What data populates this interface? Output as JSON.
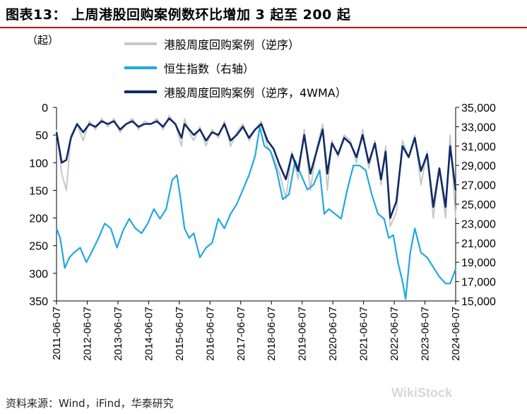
{
  "page": {
    "title": "图表13：  上周港股回购案例数环比增加 3 起至 200 起",
    "unit_label": "（起）",
    "source": "资料来源：Wind，iFind，华泰研究",
    "watermark": "WikiStock"
  },
  "chart_data": {
    "type": "line",
    "title": "上周港股回购案例数环比增加 3 起至 200 起",
    "xlabel": "",
    "ylabel_left": "（起）",
    "ylabel_right": "",
    "grid": false,
    "legend_position": "top",
    "left_axis": {
      "min": 0,
      "max": 350,
      "inverted": true,
      "ticks": [
        0,
        50,
        100,
        150,
        200,
        250,
        300,
        350
      ]
    },
    "right_axis": {
      "min": 15000,
      "max": 35000,
      "ticks": [
        "15,000",
        "17,000",
        "19,000",
        "21,000",
        "23,000",
        "25,000",
        "27,000",
        "29,000",
        "31,000",
        "33,000",
        "35,000"
      ],
      "tick_values": [
        15000,
        17000,
        19000,
        21000,
        23000,
        25000,
        27000,
        29000,
        31000,
        33000,
        35000
      ]
    },
    "x_range": [
      2011.43,
      2024.43
    ],
    "x_tick_labels": [
      "2011-06-07",
      "2012-06-07",
      "2013-06-07",
      "2014-06-07",
      "2015-06-07",
      "2016-06-07",
      "2017-06-07",
      "2018-06-07",
      "2019-06-07",
      "2020-06-07",
      "2021-06-07",
      "2022-06-07",
      "2023-06-07",
      "2024-06-07"
    ],
    "series": [
      {
        "name": "港股周度回购案例（逆序）",
        "axis": "left",
        "color": "#c8c8c8",
        "x": [
          2011.43,
          2011.6,
          2011.75,
          2011.9,
          2012.1,
          2012.3,
          2012.5,
          2012.7,
          2012.9,
          2013.1,
          2013.3,
          2013.5,
          2013.7,
          2013.9,
          2014.1,
          2014.3,
          2014.5,
          2014.7,
          2014.9,
          2015.1,
          2015.3,
          2015.5,
          2015.6,
          2015.75,
          2015.9,
          2016.1,
          2016.3,
          2016.5,
          2016.7,
          2016.9,
          2017.1,
          2017.3,
          2017.5,
          2017.7,
          2017.9,
          2018.1,
          2018.3,
          2018.5,
          2018.7,
          2018.9,
          2019.1,
          2019.3,
          2019.5,
          2019.7,
          2019.9,
          2020.1,
          2020.25,
          2020.4,
          2020.6,
          2020.8,
          2021.0,
          2021.2,
          2021.4,
          2021.6,
          2021.8,
          2022.0,
          2022.15,
          2022.3,
          2022.5,
          2022.7,
          2022.9,
          2023.1,
          2023.3,
          2023.5,
          2023.7,
          2023.9,
          2024.1,
          2024.25,
          2024.43
        ],
        "values": [
          40,
          120,
          150,
          50,
          30,
          60,
          25,
          40,
          20,
          35,
          20,
          45,
          30,
          20,
          40,
          25,
          30,
          20,
          40,
          15,
          30,
          70,
          20,
          45,
          60,
          35,
          70,
          40,
          55,
          25,
          70,
          45,
          30,
          60,
          40,
          25,
          70,
          90,
          120,
          165,
          80,
          130,
          40,
          150,
          75,
          30,
          150,
          60,
          90,
          50,
          60,
          100,
          40,
          110,
          60,
          140,
          70,
          215,
          190,
          60,
          90,
          50,
          140,
          80,
          200,
          110,
          200,
          50,
          200
        ]
      },
      {
        "name": "恒生指数（右轴）",
        "axis": "right",
        "color": "#1fa8e0",
        "x": [
          2011.43,
          2011.55,
          2011.7,
          2011.85,
          2012.0,
          2012.2,
          2012.4,
          2012.6,
          2012.8,
          2013.0,
          2013.2,
          2013.4,
          2013.6,
          2013.8,
          2014.0,
          2014.2,
          2014.4,
          2014.6,
          2014.8,
          2015.0,
          2015.2,
          2015.35,
          2015.45,
          2015.6,
          2015.75,
          2015.9,
          2016.1,
          2016.3,
          2016.5,
          2016.7,
          2016.9,
          2017.1,
          2017.3,
          2017.5,
          2017.7,
          2017.9,
          2018.05,
          2018.2,
          2018.4,
          2018.6,
          2018.8,
          2019.0,
          2019.2,
          2019.4,
          2019.6,
          2019.8,
          2020.0,
          2020.15,
          2020.3,
          2020.5,
          2020.7,
          2020.9,
          2021.1,
          2021.3,
          2021.5,
          2021.7,
          2021.9,
          2022.1,
          2022.25,
          2022.4,
          2022.55,
          2022.7,
          2022.8,
          2022.95,
          2023.1,
          2023.3,
          2023.5,
          2023.7,
          2023.9,
          2024.1,
          2024.25,
          2024.43
        ],
        "values": [
          22500,
          21500,
          18400,
          19500,
          20000,
          20500,
          19000,
          20200,
          21500,
          23000,
          22500,
          20500,
          22300,
          23500,
          22500,
          22000,
          23000,
          24500,
          23500,
          24500,
          27500,
          28000,
          26000,
          22500,
          21500,
          22000,
          19500,
          20500,
          21000,
          23500,
          22500,
          24000,
          25000,
          26500,
          28000,
          30000,
          33000,
          31000,
          30500,
          28500,
          25500,
          26000,
          29500,
          28000,
          26500,
          27000,
          28500,
          24000,
          24500,
          24000,
          23500,
          26500,
          29000,
          29000,
          28500,
          26000,
          24000,
          23500,
          21500,
          21800,
          19000,
          17000,
          15200,
          20000,
          22500,
          20000,
          19500,
          18500,
          17500,
          16800,
          16800,
          18300
        ]
      },
      {
        "name": "港股周度回购案例（逆序，4WMA）",
        "axis": "left",
        "color": "#0f2a66",
        "x": [
          2011.43,
          2011.6,
          2011.75,
          2011.9,
          2012.1,
          2012.3,
          2012.5,
          2012.7,
          2012.9,
          2013.1,
          2013.3,
          2013.5,
          2013.7,
          2013.9,
          2014.1,
          2014.3,
          2014.5,
          2014.7,
          2014.9,
          2015.1,
          2015.3,
          2015.5,
          2015.6,
          2015.75,
          2015.9,
          2016.1,
          2016.3,
          2016.5,
          2016.7,
          2016.9,
          2017.1,
          2017.3,
          2017.5,
          2017.7,
          2017.9,
          2018.1,
          2018.3,
          2018.5,
          2018.7,
          2018.9,
          2019.1,
          2019.3,
          2019.5,
          2019.7,
          2019.9,
          2020.1,
          2020.25,
          2020.4,
          2020.6,
          2020.8,
          2021.0,
          2021.2,
          2021.4,
          2021.6,
          2021.8,
          2022.0,
          2022.15,
          2022.3,
          2022.5,
          2022.7,
          2022.9,
          2023.1,
          2023.3,
          2023.5,
          2023.7,
          2023.9,
          2024.1,
          2024.25,
          2024.43
        ],
        "values": [
          45,
          100,
          95,
          55,
          30,
          45,
          30,
          35,
          25,
          30,
          25,
          40,
          30,
          25,
          35,
          30,
          30,
          25,
          35,
          20,
          30,
          55,
          30,
          40,
          50,
          40,
          60,
          45,
          50,
          30,
          60,
          50,
          35,
          55,
          40,
          30,
          60,
          75,
          105,
          130,
          85,
          115,
          50,
          120,
          80,
          40,
          120,
          65,
          85,
          55,
          65,
          90,
          50,
          100,
          65,
          130,
          80,
          200,
          170,
          70,
          90,
          55,
          115,
          85,
          180,
          110,
          180,
          70,
          150
        ]
      }
    ]
  }
}
